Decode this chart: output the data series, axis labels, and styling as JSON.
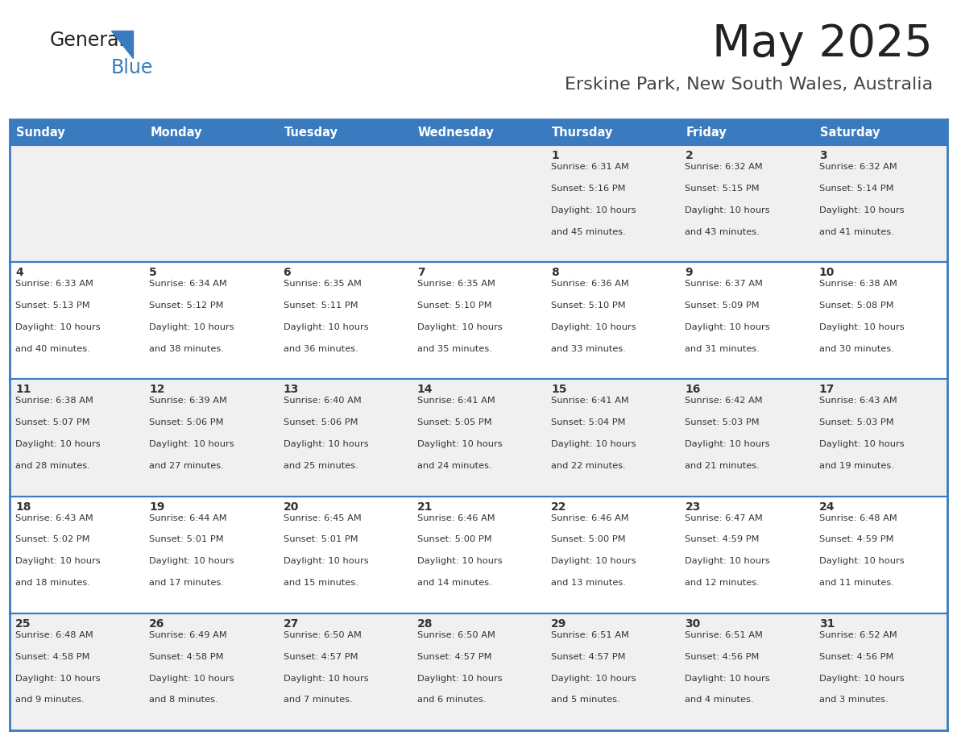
{
  "title": "May 2025",
  "subtitle": "Erskine Park, New South Wales, Australia",
  "days_of_week": [
    "Sunday",
    "Monday",
    "Tuesday",
    "Wednesday",
    "Thursday",
    "Friday",
    "Saturday"
  ],
  "header_bg": "#3a7abf",
  "header_text": "#ffffff",
  "row_bg_odd": "#f0f0f0",
  "row_bg_even": "#ffffff",
  "cell_border": "#3a7abf",
  "day_num_color": "#333333",
  "text_color": "#333333",
  "title_color": "#222222",
  "subtitle_color": "#444444",
  "calendar": [
    [
      null,
      null,
      null,
      null,
      {
        "day": 1,
        "sunrise": "6:31 AM",
        "sunset": "5:16 PM",
        "daylight": "10 hours and 45 minutes"
      },
      {
        "day": 2,
        "sunrise": "6:32 AM",
        "sunset": "5:15 PM",
        "daylight": "10 hours and 43 minutes"
      },
      {
        "day": 3,
        "sunrise": "6:32 AM",
        "sunset": "5:14 PM",
        "daylight": "10 hours and 41 minutes"
      }
    ],
    [
      {
        "day": 4,
        "sunrise": "6:33 AM",
        "sunset": "5:13 PM",
        "daylight": "10 hours and 40 minutes"
      },
      {
        "day": 5,
        "sunrise": "6:34 AM",
        "sunset": "5:12 PM",
        "daylight": "10 hours and 38 minutes"
      },
      {
        "day": 6,
        "sunrise": "6:35 AM",
        "sunset": "5:11 PM",
        "daylight": "10 hours and 36 minutes"
      },
      {
        "day": 7,
        "sunrise": "6:35 AM",
        "sunset": "5:10 PM",
        "daylight": "10 hours and 35 minutes"
      },
      {
        "day": 8,
        "sunrise": "6:36 AM",
        "sunset": "5:10 PM",
        "daylight": "10 hours and 33 minutes"
      },
      {
        "day": 9,
        "sunrise": "6:37 AM",
        "sunset": "5:09 PM",
        "daylight": "10 hours and 31 minutes"
      },
      {
        "day": 10,
        "sunrise": "6:38 AM",
        "sunset": "5:08 PM",
        "daylight": "10 hours and 30 minutes"
      }
    ],
    [
      {
        "day": 11,
        "sunrise": "6:38 AM",
        "sunset": "5:07 PM",
        "daylight": "10 hours and 28 minutes"
      },
      {
        "day": 12,
        "sunrise": "6:39 AM",
        "sunset": "5:06 PM",
        "daylight": "10 hours and 27 minutes"
      },
      {
        "day": 13,
        "sunrise": "6:40 AM",
        "sunset": "5:06 PM",
        "daylight": "10 hours and 25 minutes"
      },
      {
        "day": 14,
        "sunrise": "6:41 AM",
        "sunset": "5:05 PM",
        "daylight": "10 hours and 24 minutes"
      },
      {
        "day": 15,
        "sunrise": "6:41 AM",
        "sunset": "5:04 PM",
        "daylight": "10 hours and 22 minutes"
      },
      {
        "day": 16,
        "sunrise": "6:42 AM",
        "sunset": "5:03 PM",
        "daylight": "10 hours and 21 minutes"
      },
      {
        "day": 17,
        "sunrise": "6:43 AM",
        "sunset": "5:03 PM",
        "daylight": "10 hours and 19 minutes"
      }
    ],
    [
      {
        "day": 18,
        "sunrise": "6:43 AM",
        "sunset": "5:02 PM",
        "daylight": "10 hours and 18 minutes"
      },
      {
        "day": 19,
        "sunrise": "6:44 AM",
        "sunset": "5:01 PM",
        "daylight": "10 hours and 17 minutes"
      },
      {
        "day": 20,
        "sunrise": "6:45 AM",
        "sunset": "5:01 PM",
        "daylight": "10 hours and 15 minutes"
      },
      {
        "day": 21,
        "sunrise": "6:46 AM",
        "sunset": "5:00 PM",
        "daylight": "10 hours and 14 minutes"
      },
      {
        "day": 22,
        "sunrise": "6:46 AM",
        "sunset": "5:00 PM",
        "daylight": "10 hours and 13 minutes"
      },
      {
        "day": 23,
        "sunrise": "6:47 AM",
        "sunset": "4:59 PM",
        "daylight": "10 hours and 12 minutes"
      },
      {
        "day": 24,
        "sunrise": "6:48 AM",
        "sunset": "4:59 PM",
        "daylight": "10 hours and 11 minutes"
      }
    ],
    [
      {
        "day": 25,
        "sunrise": "6:48 AM",
        "sunset": "4:58 PM",
        "daylight": "10 hours and 9 minutes"
      },
      {
        "day": 26,
        "sunrise": "6:49 AM",
        "sunset": "4:58 PM",
        "daylight": "10 hours and 8 minutes"
      },
      {
        "day": 27,
        "sunrise": "6:50 AM",
        "sunset": "4:57 PM",
        "daylight": "10 hours and 7 minutes"
      },
      {
        "day": 28,
        "sunrise": "6:50 AM",
        "sunset": "4:57 PM",
        "daylight": "10 hours and 6 minutes"
      },
      {
        "day": 29,
        "sunrise": "6:51 AM",
        "sunset": "4:57 PM",
        "daylight": "10 hours and 5 minutes"
      },
      {
        "day": 30,
        "sunrise": "6:51 AM",
        "sunset": "4:56 PM",
        "daylight": "10 hours and 4 minutes"
      },
      {
        "day": 31,
        "sunrise": "6:52 AM",
        "sunset": "4:56 PM",
        "daylight": "10 hours and 3 minutes"
      }
    ]
  ]
}
